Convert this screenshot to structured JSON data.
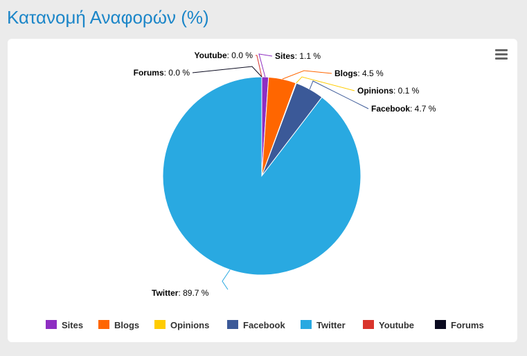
{
  "title": "Κατανομή Αναφορών (%)",
  "menu_icon": "hamburger-menu-icon",
  "chart_data": {
    "type": "pie",
    "title": "Κατανομή Αναφορών (%)",
    "unit": "%",
    "slices": [
      {
        "name": "Sites",
        "value": 1.1,
        "label": "1.1 %",
        "color": "#8e2ec2"
      },
      {
        "name": "Blogs",
        "value": 4.5,
        "label": "4.5 %",
        "color": "#ff6600"
      },
      {
        "name": "Opinions",
        "value": 0.1,
        "label": "0.1 %",
        "color": "#ffcc00"
      },
      {
        "name": "Facebook",
        "value": 4.7,
        "label": "4.7 %",
        "color": "#3b5998"
      },
      {
        "name": "Twitter",
        "value": 89.7,
        "label": "89.7 %",
        "color": "#29a9e1"
      },
      {
        "name": "Youtube",
        "value": 0.0,
        "label": "0.0 %",
        "color": "#d9342b"
      },
      {
        "name": "Forums",
        "value": 0.0,
        "label": "0.0 %",
        "color": "#0a0a1f"
      }
    ],
    "legend_position": "bottom"
  }
}
